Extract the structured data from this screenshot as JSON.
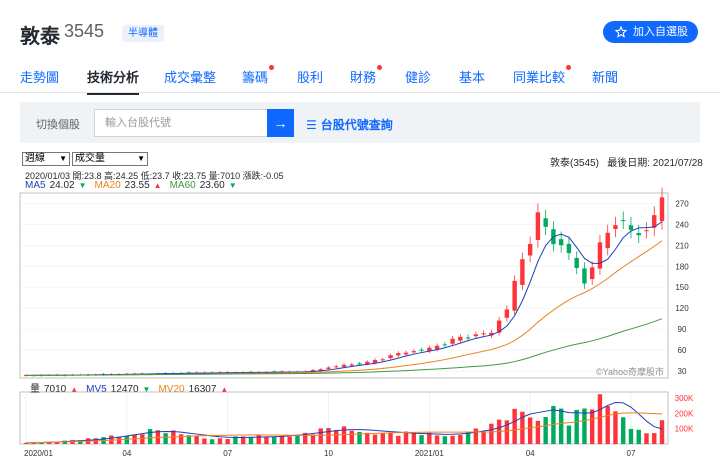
{
  "header": {
    "stock_name": "敦泰",
    "stock_code": "3545",
    "industry": "半導體",
    "watchlist_label": "加入自選股"
  },
  "tabs": [
    {
      "label": "走勢圖",
      "active": false,
      "dot": false
    },
    {
      "label": "技術分析",
      "active": true,
      "dot": false
    },
    {
      "label": "成交彙整",
      "active": false,
      "dot": false
    },
    {
      "label": "籌碼",
      "active": false,
      "dot": true
    },
    {
      "label": "股利",
      "active": false,
      "dot": false
    },
    {
      "label": "財務",
      "active": false,
      "dot": true
    },
    {
      "label": "健診",
      "active": false,
      "dot": false
    },
    {
      "label": "基本",
      "active": false,
      "dot": false
    },
    {
      "label": "同業比較",
      "active": false,
      "dot": true
    },
    {
      "label": "新聞",
      "active": false,
      "dot": false
    }
  ],
  "search": {
    "label": "切換個股",
    "placeholder": "輸入台股代號",
    "lookup_label": "台股代號查詢"
  },
  "controls": {
    "period": "週線",
    "indicator": "成交量"
  },
  "meta": {
    "title": "敦泰(3545)",
    "last_date_label": "最後日期: 2021/07/28"
  },
  "ohlc": {
    "text": "2020/01/03  開:23.8  高:24.25  低:23.7  收:23.75  量:7010  漲跌:-0.05"
  },
  "ma": [
    {
      "label": "MA5",
      "value": "24.02",
      "dir": "down",
      "color": "#1d3fbb"
    },
    {
      "label": "MA20",
      "value": "23.55",
      "dir": "up",
      "color": "#f0801e"
    },
    {
      "label": "MA60",
      "value": "23.60",
      "dir": "down",
      "color": "#3f9a47"
    }
  ],
  "volume_legend": [
    {
      "label": "量",
      "value": "7010",
      "dir": "up",
      "color": "#232a31"
    },
    {
      "label": "MV5",
      "value": "12470",
      "dir": "down",
      "color": "#1d3fbb"
    },
    {
      "label": "MV20",
      "value": "16307",
      "dir": "up",
      "color": "#f0801e"
    }
  ],
  "watermark": "©Yahoo奇摩股市",
  "colors": {
    "up": "#ff333a",
    "down": "#00ab5e",
    "accent": "#0f69ff",
    "ma5": "#1d3fbb",
    "ma20": "#f0801e",
    "ma60": "#3f9a47"
  },
  "chart_data": {
    "type": "candlestick",
    "price_axis": {
      "ticks": [
        30,
        60,
        90,
        120,
        150,
        180,
        210,
        240,
        270
      ],
      "range": [
        20,
        285
      ]
    },
    "volume_axis": {
      "ticks": [
        "100K",
        "200K",
        "300K"
      ],
      "tick_values": [
        100000,
        200000,
        300000
      ],
      "range": [
        0,
        340000
      ]
    },
    "x_ticks": [
      "2020/01",
      "04",
      "07",
      "10",
      "2021/01",
      "04",
      "07"
    ],
    "x_tick_week_index": [
      0,
      13,
      26,
      39,
      52,
      65,
      78
    ],
    "weeks": 83,
    "key_closes": [
      [
        0,
        23.75
      ],
      [
        10,
        25
      ],
      [
        20,
        27
      ],
      [
        28,
        28
      ],
      [
        36,
        29
      ],
      [
        40,
        37
      ],
      [
        44,
        42
      ],
      [
        48,
        55
      ],
      [
        52,
        62
      ],
      [
        56,
        78
      ],
      [
        60,
        85
      ],
      [
        62,
        120
      ],
      [
        64,
        190
      ],
      [
        66,
        250
      ],
      [
        68,
        218
      ],
      [
        70,
        198
      ],
      [
        72,
        156
      ],
      [
        74,
        208
      ],
      [
        76,
        248
      ],
      [
        78,
        230
      ],
      [
        80,
        230
      ],
      [
        82,
        276
      ]
    ],
    "key_volumes": [
      [
        0,
        7010
      ],
      [
        8,
        30000
      ],
      [
        16,
        90000
      ],
      [
        24,
        40000
      ],
      [
        32,
        50000
      ],
      [
        40,
        100000
      ],
      [
        48,
        70000
      ],
      [
        54,
        60000
      ],
      [
        60,
        110000
      ],
      [
        64,
        240000
      ],
      [
        66,
        190000
      ],
      [
        68,
        250000
      ],
      [
        70,
        160000
      ],
      [
        72,
        210000
      ],
      [
        74,
        310000
      ],
      [
        76,
        280000
      ],
      [
        78,
        120000
      ],
      [
        80,
        60000
      ],
      [
        82,
        130000
      ]
    ]
  }
}
